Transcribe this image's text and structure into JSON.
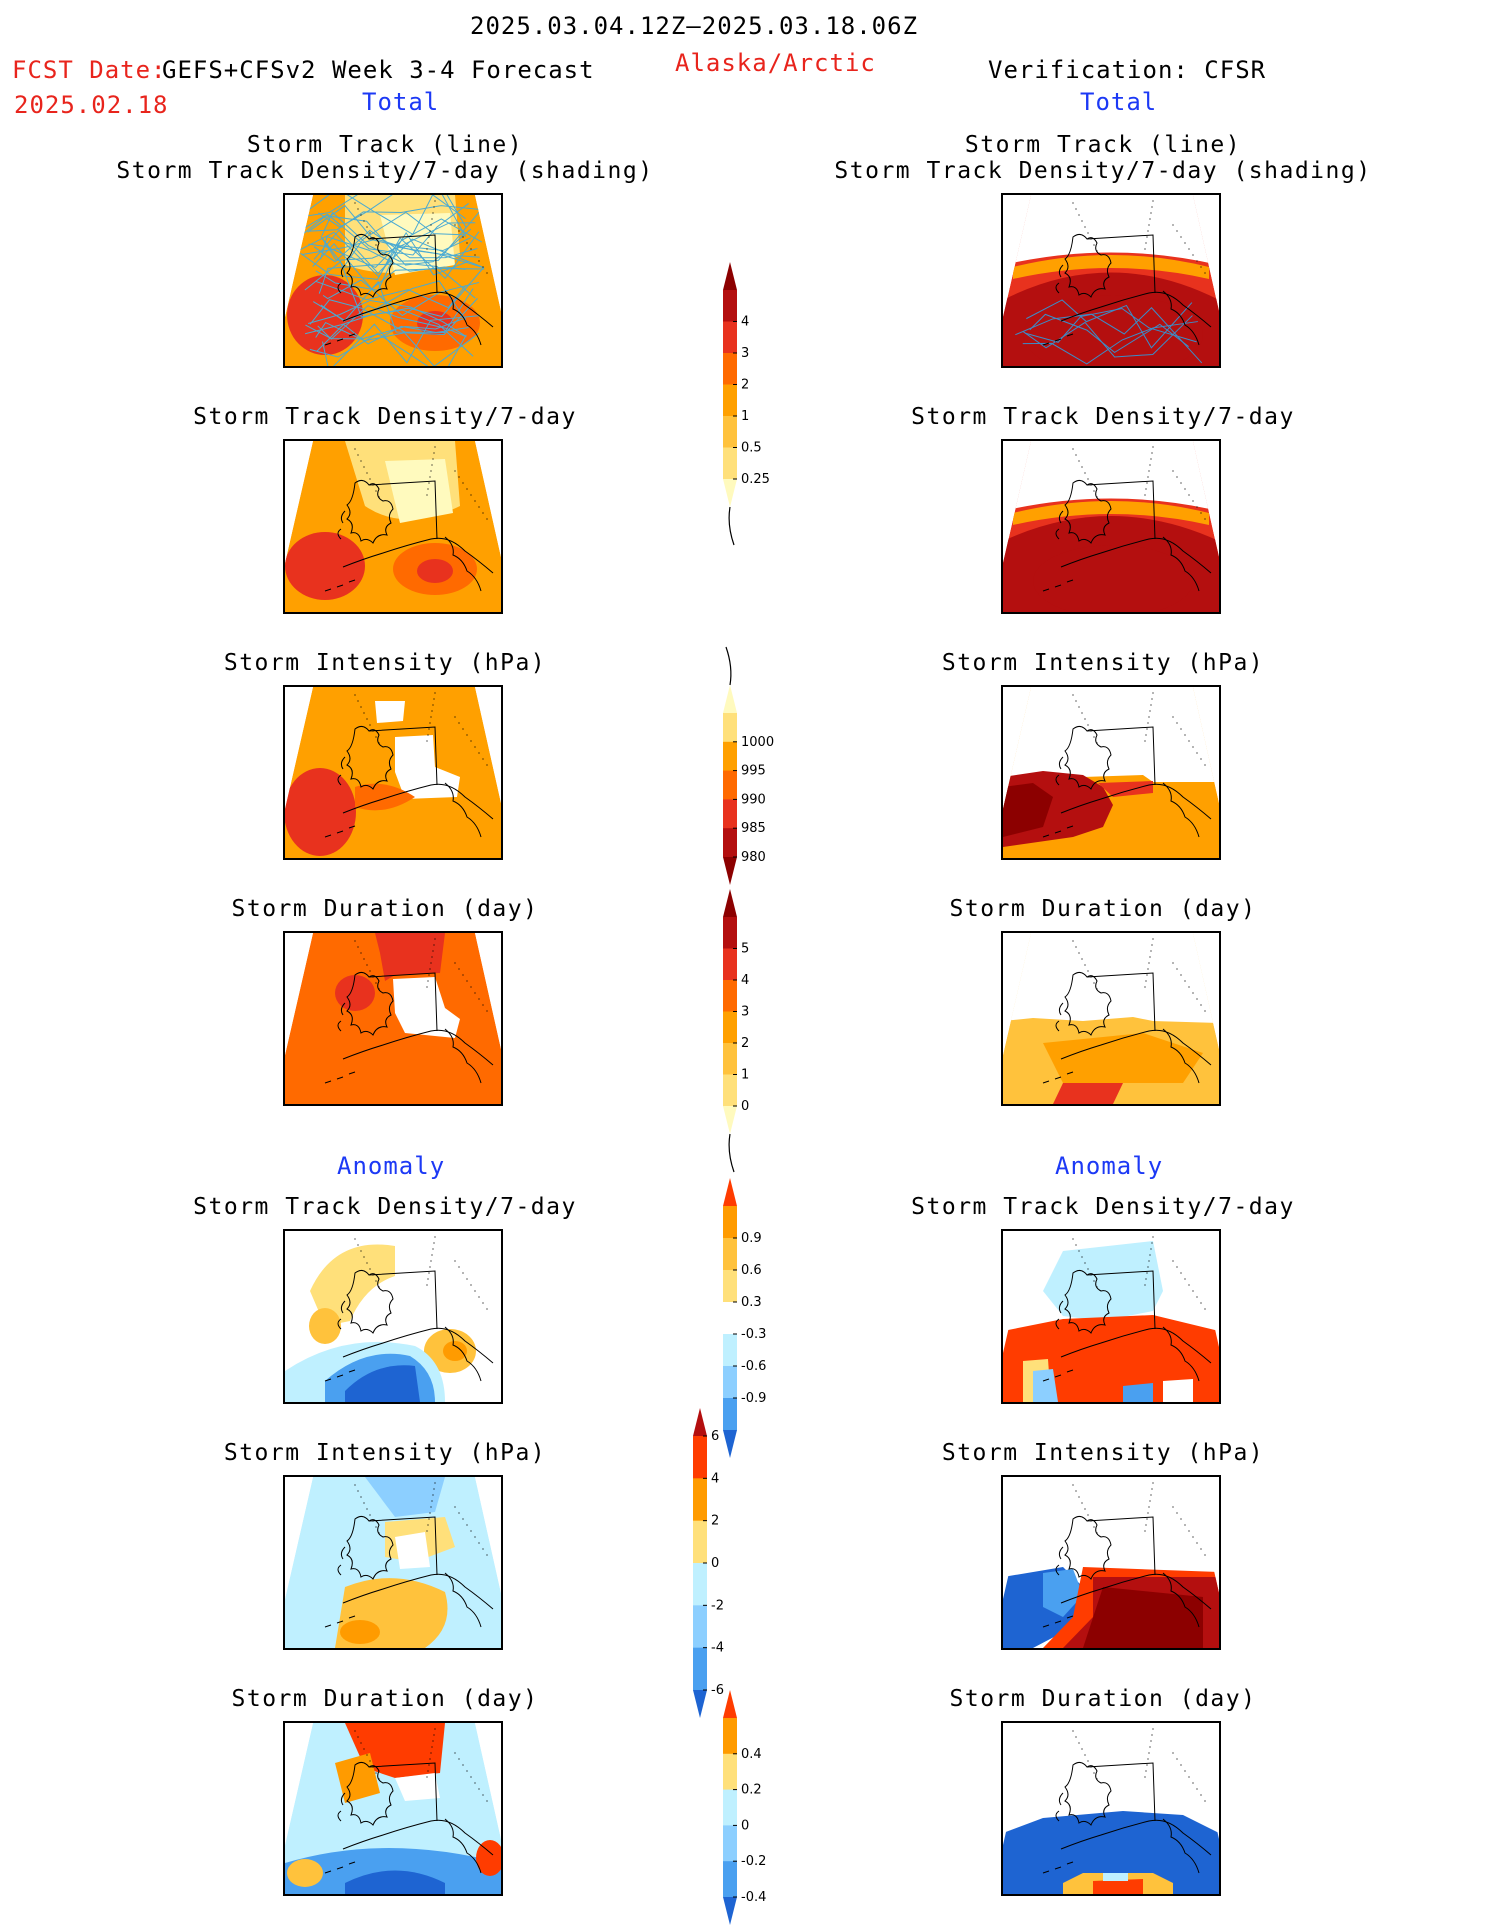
{
  "header": {
    "period": "2025.03.04.12Z–2025.03.18.06Z",
    "fcst_label": "FCST Date:",
    "model": "GEFS+CFSv2 Week 3-4 Forecast",
    "fcst_date": "2025.02.18",
    "region": "Alaska/Arctic",
    "verification": "Verification: CFSR"
  },
  "sections": {
    "total": "Total",
    "anomaly": "Anomaly"
  },
  "panel_titles": {
    "track_line": "Storm Track (line)",
    "track_shading": "Storm Track Density/7-day (shading)",
    "density": "Storm Track Density/7-day",
    "intensity": "Storm Intensity (hPa)",
    "duration": "Storm Duration (day)"
  },
  "colors": {
    "warm": [
      "#fffabe",
      "#ffe07a",
      "#ffc23c",
      "#ffa000",
      "#ff6a00",
      "#e8321e",
      "#b40f0f",
      "#8c0000"
    ],
    "anom_pos": [
      "#ffe07a",
      "#ffc23c",
      "#ff9b00",
      "#ff3c00"
    ],
    "anom_neg": [
      "#bff0ff",
      "#8ccfff",
      "#4aa0f0",
      "#1e64d2"
    ],
    "track_line": "#4aaad2"
  },
  "chart_data": [
    {
      "type": "heatmap",
      "title": "Storm Track Density/7-day",
      "colorbar_ticks": [
        "4",
        "3",
        "2",
        "1",
        "0.5",
        "0.25"
      ],
      "columns": [
        "GEFS+CFSv2 Week 3-4 Forecast",
        "Verification: CFSR"
      ],
      "section": "Total"
    },
    {
      "type": "heatmap",
      "title": "Storm Intensity (hPa)",
      "colorbar_ticks": [
        "1000",
        "995",
        "990",
        "985",
        "980"
      ],
      "section": "Total"
    },
    {
      "type": "heatmap",
      "title": "Storm Duration (day)",
      "colorbar_ticks": [
        "5",
        "4",
        "3",
        "2",
        "1",
        "0"
      ],
      "section": "Total"
    },
    {
      "type": "heatmap",
      "title": "Storm Track Density/7-day",
      "colorbar_ticks": [
        "0.9",
        "0.6",
        "0.3",
        "-0.3",
        "-0.6",
        "-0.9"
      ],
      "section": "Anomaly"
    },
    {
      "type": "heatmap",
      "title": "Storm Intensity (hPa)",
      "colorbar_ticks": [
        "6",
        "4",
        "2",
        "0",
        "-2",
        "-4",
        "-6"
      ],
      "section": "Anomaly"
    },
    {
      "type": "heatmap",
      "title": "Storm Duration (day)",
      "colorbar_ticks": [
        "0.4",
        "0.2",
        "0",
        "-0.2",
        "-0.4"
      ],
      "section": "Anomaly"
    }
  ]
}
